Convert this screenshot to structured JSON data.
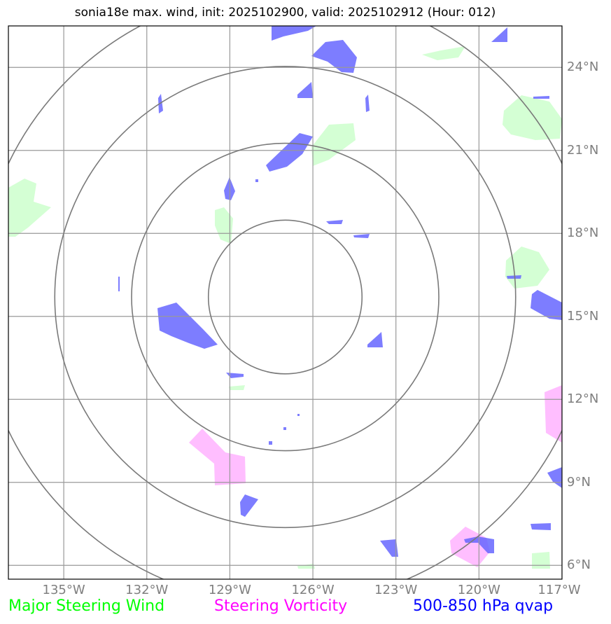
{
  "title": "sonia18e max. wind, init: 2025102900, valid: 2025102912 (Hour: 012)",
  "map": {
    "lon_range": [
      -137,
      -117
    ],
    "lat_range": [
      5.5,
      25.5
    ],
    "storm_center": {
      "lon": -127,
      "lat": 15.7
    },
    "range_rings_deg": [
      2.5,
      5,
      7.5,
      10
    ]
  },
  "lat_labels": [
    {
      "lat": 24,
      "text": "24°N"
    },
    {
      "lat": 21,
      "text": "21°N"
    },
    {
      "lat": 18,
      "text": "18°N"
    },
    {
      "lat": 15,
      "text": "15°N"
    },
    {
      "lat": 12,
      "text": "12°N"
    },
    {
      "lat": 9,
      "text": "9°N"
    },
    {
      "lat": 6,
      "text": "6°N"
    }
  ],
  "lon_labels": [
    {
      "lon": -135,
      "text": "135°W"
    },
    {
      "lon": -132,
      "text": "132°W"
    },
    {
      "lon": -129,
      "text": "129°W"
    },
    {
      "lon": -126,
      "text": "126°W"
    },
    {
      "lon": -123,
      "text": "123°W"
    },
    {
      "lon": -120,
      "text": "120°W"
    },
    {
      "lon": -117,
      "text": "117°W"
    }
  ],
  "legend": {
    "wind": {
      "label": "Major Steering Wind",
      "color": "#00ff00"
    },
    "vorticity": {
      "label": "Steering Vorticity",
      "color": "#ff00ff"
    },
    "qvap": {
      "label": "500-850 hPa qvap",
      "color": "#0000ff"
    }
  },
  "fill_colors": {
    "wind": "#ccffcc",
    "vorticity": "#ffb3ff",
    "qvap": "#6666ff"
  }
}
